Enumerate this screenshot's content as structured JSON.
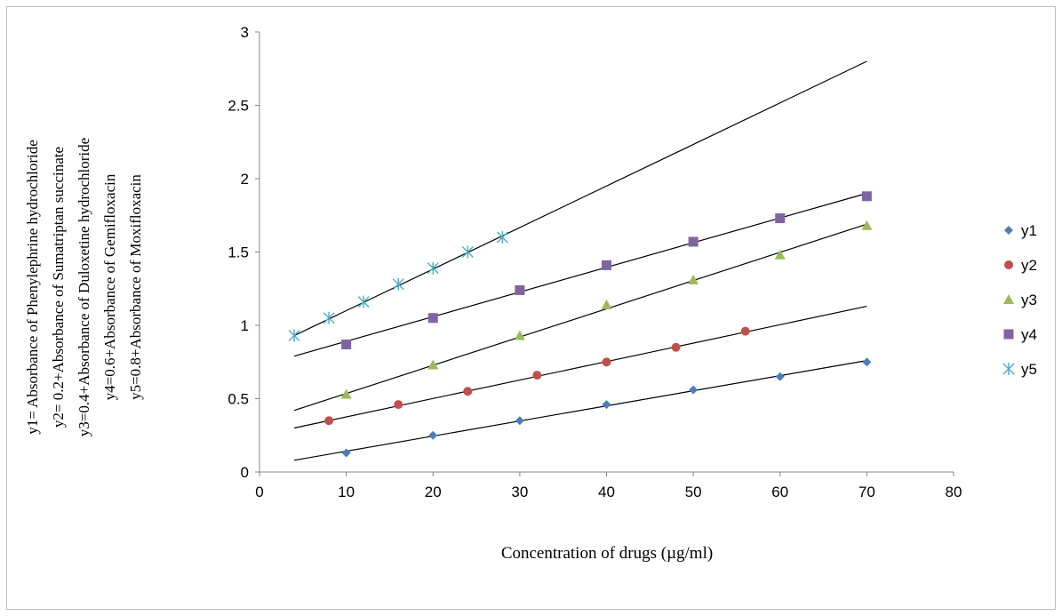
{
  "chart_data": {
    "type": "scatter",
    "xlabel": "Concentration of drugs (µg/ml)",
    "ylabel_lines": [
      "y1= Absorbance of  Phenylephrine hydrochloride",
      "y2= 0.2+Absorbance of Sumatriptan succinate",
      "y3=0.4+Absorbance of Duloxetine hydrochloride",
      "y4=0.6+Absorbance of Gemifloxacin",
      "y5=0.8+Absorbance of Moxifloxacin"
    ],
    "xlim": [
      0,
      80
    ],
    "ylim": [
      0,
      3
    ],
    "x_ticks": [
      "0",
      "10",
      "20",
      "30",
      "40",
      "50",
      "60",
      "70",
      "80"
    ],
    "y_ticks": [
      "0",
      "0.5",
      "1",
      "1.5",
      "2",
      "2.5",
      "3"
    ],
    "grid": false,
    "legend_position": "right",
    "series": [
      {
        "name": "y1",
        "color": "#4a7ebb",
        "marker": "diamond",
        "points": [
          [
            10,
            0.13
          ],
          [
            20,
            0.25
          ],
          [
            30,
            0.35
          ],
          [
            40,
            0.46
          ],
          [
            50,
            0.56
          ],
          [
            60,
            0.65
          ],
          [
            70,
            0.75
          ]
        ],
        "trendline": [
          [
            4,
            0.08
          ],
          [
            70,
            0.76
          ]
        ]
      },
      {
        "name": "y2",
        "color": "#c0504d",
        "marker": "circle",
        "points": [
          [
            8,
            0.35
          ],
          [
            16,
            0.46
          ],
          [
            24,
            0.55
          ],
          [
            32,
            0.66
          ],
          [
            40,
            0.75
          ],
          [
            48,
            0.85
          ],
          [
            56,
            0.96
          ]
        ],
        "trendline": [
          [
            4,
            0.3
          ],
          [
            70,
            1.13
          ]
        ]
      },
      {
        "name": "y3",
        "color": "#9bbb59",
        "marker": "triangle",
        "points": [
          [
            10,
            0.53
          ],
          [
            20,
            0.73
          ],
          [
            30,
            0.93
          ],
          [
            40,
            1.14
          ],
          [
            50,
            1.31
          ],
          [
            60,
            1.48
          ],
          [
            70,
            1.68
          ]
        ],
        "trendline": [
          [
            4,
            0.42
          ],
          [
            70,
            1.69
          ]
        ]
      },
      {
        "name": "y4",
        "color": "#8064a2",
        "marker": "square",
        "points": [
          [
            10,
            0.87
          ],
          [
            20,
            1.05
          ],
          [
            30,
            1.24
          ],
          [
            40,
            1.41
          ],
          [
            50,
            1.57
          ],
          [
            60,
            1.73
          ],
          [
            70,
            1.88
          ]
        ],
        "trendline": [
          [
            4,
            0.79
          ],
          [
            70,
            1.9
          ]
        ]
      },
      {
        "name": "y5",
        "color": "#4bacc6",
        "marker": "star",
        "points": [
          [
            4,
            0.93
          ],
          [
            8,
            1.05
          ],
          [
            12,
            1.16
          ],
          [
            16,
            1.28
          ],
          [
            20,
            1.39
          ],
          [
            24,
            1.5
          ],
          [
            28,
            1.6
          ]
        ],
        "trendline": [
          [
            4,
            0.93
          ],
          [
            70,
            2.8
          ]
        ]
      }
    ]
  }
}
